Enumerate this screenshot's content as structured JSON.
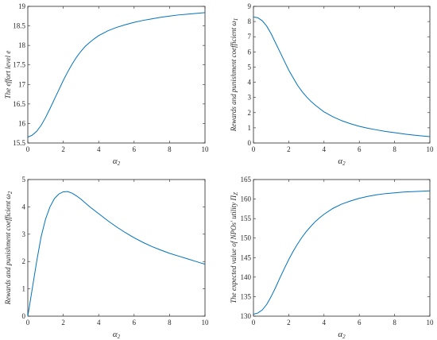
{
  "chart_data": [
    {
      "type": "line",
      "xlabel": "α",
      "xlabel_sub": "2",
      "ylabel": "The effort level e",
      "xlim": [
        0,
        10
      ],
      "ylim": [
        15.5,
        19
      ],
      "xticks": [
        0,
        2,
        4,
        6,
        8,
        10
      ],
      "yticks": [
        15.5,
        16,
        16.5,
        17,
        17.5,
        18,
        18.5,
        19
      ],
      "series": [
        {
          "color": "#0072BD",
          "x": [
            0,
            0.25,
            0.5,
            0.75,
            1,
            1.25,
            1.5,
            1.75,
            2,
            2.25,
            2.5,
            2.75,
            3,
            3.25,
            3.5,
            3.75,
            4,
            4.5,
            5,
            5.5,
            6,
            6.5,
            7,
            7.5,
            8,
            8.5,
            9,
            9.5,
            10
          ],
          "y": [
            15.65,
            15.7,
            15.8,
            15.95,
            16.15,
            16.38,
            16.62,
            16.86,
            17.1,
            17.32,
            17.52,
            17.7,
            17.85,
            17.98,
            18.08,
            18.17,
            18.25,
            18.37,
            18.46,
            18.53,
            18.59,
            18.64,
            18.68,
            18.72,
            18.75,
            18.78,
            18.8,
            18.82,
            18.84
          ]
        }
      ]
    },
    {
      "type": "line",
      "xlabel": "α",
      "xlabel_sub": "2",
      "ylabel": "Rewards and punishment coefficient ω",
      "ylabel_sub": "1",
      "xlim": [
        0,
        10
      ],
      "ylim": [
        0,
        9
      ],
      "xticks": [
        0,
        2,
        4,
        6,
        8,
        10
      ],
      "yticks": [
        0,
        1,
        2,
        3,
        4,
        5,
        6,
        7,
        8,
        9
      ],
      "series": [
        {
          "color": "#0072BD",
          "x": [
            0,
            0.25,
            0.5,
            0.75,
            1,
            1.25,
            1.5,
            1.75,
            2,
            2.25,
            2.5,
            2.75,
            3,
            3.25,
            3.5,
            3.75,
            4,
            4.5,
            5,
            5.5,
            6,
            6.5,
            7,
            7.5,
            8,
            8.5,
            9,
            9.5,
            10
          ],
          "y": [
            8.3,
            8.25,
            8.05,
            7.7,
            7.2,
            6.6,
            6.0,
            5.4,
            4.8,
            4.3,
            3.8,
            3.4,
            3.05,
            2.75,
            2.5,
            2.27,
            2.05,
            1.73,
            1.47,
            1.27,
            1.1,
            0.97,
            0.86,
            0.76,
            0.68,
            0.6,
            0.53,
            0.47,
            0.42
          ]
        }
      ]
    },
    {
      "type": "line",
      "xlabel": "α",
      "xlabel_sub": "2",
      "ylabel": "Rewards and punishment coefficient ω",
      "ylabel_sub": "2",
      "xlim": [
        0,
        10
      ],
      "ylim": [
        0,
        5
      ],
      "xticks": [
        0,
        2,
        4,
        6,
        8,
        10
      ],
      "yticks": [
        0,
        1,
        2,
        3,
        4,
        5
      ],
      "series": [
        {
          "color": "#0072BD",
          "x": [
            0,
            0.1,
            0.25,
            0.5,
            0.75,
            1,
            1.25,
            1.5,
            1.75,
            2,
            2.25,
            2.5,
            2.75,
            3,
            3.5,
            4,
            4.5,
            5,
            5.5,
            6,
            6.5,
            7,
            7.5,
            8,
            8.5,
            9,
            9.5,
            10
          ],
          "y": [
            0,
            0.4,
            1.0,
            2.0,
            2.9,
            3.55,
            4.0,
            4.3,
            4.47,
            4.55,
            4.56,
            4.5,
            4.4,
            4.28,
            4.0,
            3.75,
            3.5,
            3.27,
            3.06,
            2.87,
            2.7,
            2.55,
            2.42,
            2.3,
            2.2,
            2.1,
            2.0,
            1.9
          ]
        }
      ]
    },
    {
      "type": "line",
      "xlabel": "α",
      "xlabel_sub": "2",
      "ylabel": "The expected value of NPOs' utility Π",
      "ylabel_sub": "Z",
      "xlim": [
        0,
        10
      ],
      "ylim": [
        130,
        165
      ],
      "xticks": [
        0,
        2,
        4,
        6,
        8,
        10
      ],
      "yticks": [
        130,
        135,
        140,
        145,
        150,
        155,
        160,
        165
      ],
      "series": [
        {
          "color": "#0072BD",
          "x": [
            0,
            0.25,
            0.5,
            0.75,
            1,
            1.25,
            1.5,
            1.75,
            2,
            2.25,
            2.5,
            2.75,
            3,
            3.25,
            3.5,
            3.75,
            4,
            4.5,
            5,
            5.5,
            6,
            6.5,
            7,
            7.5,
            8,
            8.5,
            9,
            9.5,
            10
          ],
          "y": [
            130.5,
            130.8,
            131.6,
            133.0,
            135.0,
            137.3,
            139.8,
            142.2,
            144.5,
            146.6,
            148.5,
            150.2,
            151.7,
            153.0,
            154.2,
            155.2,
            156.1,
            157.6,
            158.7,
            159.5,
            160.2,
            160.7,
            161.1,
            161.4,
            161.6,
            161.8,
            161.9,
            162.0,
            162.1
          ]
        }
      ]
    }
  ]
}
